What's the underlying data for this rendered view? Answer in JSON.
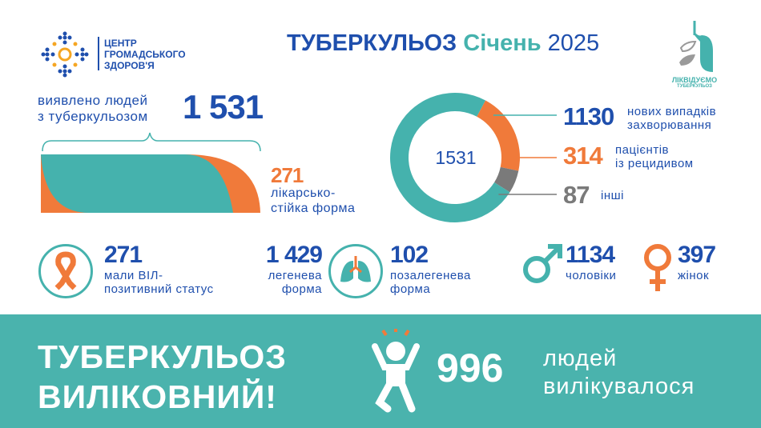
{
  "logo_left": {
    "lines": [
      "ЦЕНТР",
      "ГРОМАДСЬКОГО",
      "ЗДОРОВ'Я"
    ]
  },
  "title": {
    "part1": "ТУБЕРКУЛЬОЗ",
    "part2": "Січень",
    "part3": "2025"
  },
  "logo_right": {
    "line1": "ЛІКВІДУЄМО",
    "line2": "ТУБЕРКУЛЬОЗ"
  },
  "detected": {
    "label1": "виявлено людей",
    "label2": "з туберкульозом",
    "value": "1 531"
  },
  "resistant": {
    "value": "271",
    "label1": "лікарсько-",
    "label2": "стійка форма",
    "fraction": 0.177
  },
  "chart_data": {
    "type": "pie",
    "center_label": "1531",
    "categories": [
      "нових випадків захворювання",
      "пацієнтів із рецидивом",
      "інші"
    ],
    "values": [
      1130,
      314,
      87
    ],
    "colors": [
      "#45b2ad",
      "#f07a3a",
      "#7a7a7a"
    ]
  },
  "legend": [
    {
      "value": "1130",
      "label1": "нових випадків",
      "label2": "захворювання"
    },
    {
      "value": "314",
      "label1": "пацієнтів",
      "label2": "із рецидивом"
    },
    {
      "value": "87",
      "label1": "інші",
      "label2": ""
    }
  ],
  "stats": {
    "hiv": {
      "value": "271",
      "label1": "мали ВІЛ-",
      "label2": "позитивний статус",
      "icon": "ribbon-icon"
    },
    "pulmonary": {
      "value": "1 429",
      "label1": "легенева",
      "label2": "форма"
    },
    "extrapulmonary": {
      "value": "102",
      "label1": "позалегенева",
      "label2": "форма",
      "icon": "lungs-icon"
    },
    "men": {
      "value": "1134",
      "label": "чоловіки",
      "icon": "male-icon"
    },
    "women": {
      "value": "397",
      "label": "жінок",
      "icon": "female-icon"
    }
  },
  "banner": {
    "line1": "ТУБЕРКУЛЬОЗ",
    "line2": "ВИЛІКОВНИЙ!",
    "value": "996",
    "label1": "людей",
    "label2": "вилікувалося"
  },
  "colors": {
    "blue": "#1f4fad",
    "teal": "#45b2ad",
    "orange": "#f07a3a",
    "grey": "#7a7a7a"
  }
}
